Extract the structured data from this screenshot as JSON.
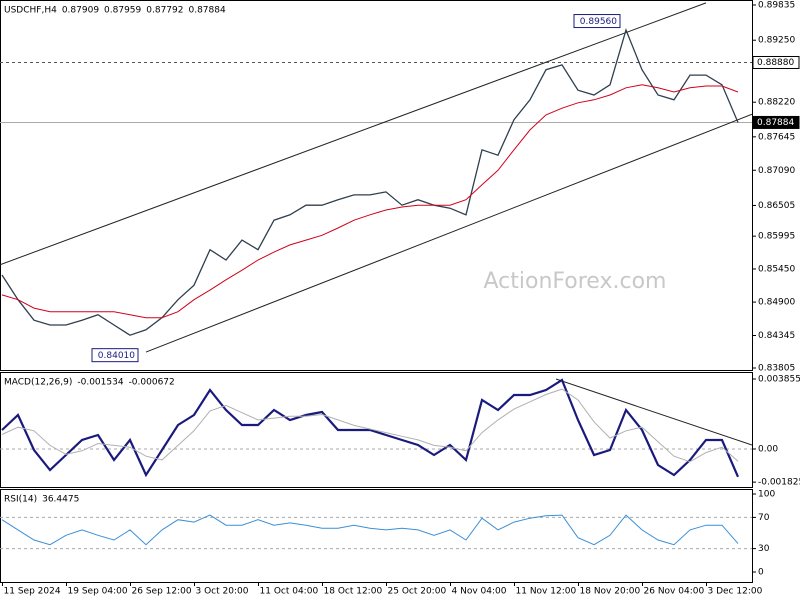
{
  "chart_data": [
    {
      "type": "line",
      "title": "USDCHF,H4",
      "header_values": [
        0.87909,
        0.87959,
        0.87792,
        0.87884
      ],
      "watermark": "ActionForex.com",
      "x": [
        0,
        1,
        2,
        3,
        4,
        5,
        6,
        7,
        8,
        9,
        10,
        11,
        12,
        13,
        14,
        15,
        16,
        17,
        18,
        19,
        20,
        21,
        22,
        23,
        24,
        25,
        26,
        27,
        28,
        29,
        30,
        31,
        32,
        33,
        34,
        35,
        36,
        37,
        38,
        39,
        40,
        41,
        42,
        43,
        44,
        45,
        46
      ],
      "xlim": [
        -0.125,
        46.875
      ],
      "ylim": [
        0.83772,
        0.89918
      ],
      "yticks": [
        0.89835,
        {
          "value": 0.8925,
          "label": "0.89250"
        },
        {
          "value": 0.8822,
          "label": "0.88220"
        },
        0.87645,
        {
          "value": 0.8709,
          "label": "0.87090"
        },
        0.86505,
        0.85995,
        {
          "value": 0.8545,
          "label": "0.85450"
        },
        {
          "value": 0.849,
          "label": "0.84900"
        },
        0.84345,
        0.83805
      ],
      "series": [
        {
          "color": "#2f3f4f",
          "values": [
            0.8535,
            0.8494,
            0.846,
            0.8452,
            0.8452,
            0.846,
            0.8469,
            0.8452,
            0.8435,
            0.8444,
            0.8464,
            0.8494,
            0.8518,
            0.8577,
            0.856,
            0.8593,
            0.8577,
            0.8626,
            0.8635,
            0.8651,
            0.8651,
            0.866,
            0.8668,
            0.8668,
            0.8673,
            0.8651,
            0.866,
            0.8651,
            0.8646,
            0.8635,
            0.8743,
            0.8734,
            0.8793,
            0.8826,
            0.8876,
            0.8884,
            0.8842,
            0.8834,
            0.8851,
            0.8942,
            0.8876,
            0.8834,
            0.8826,
            0.8867,
            0.8867,
            0.8851,
            0.87884
          ]
        },
        {
          "color": "#d0021b",
          "values": [
            0.8502,
            0.8494,
            0.848,
            0.8474,
            0.8474,
            0.8474,
            0.8474,
            0.8474,
            0.8469,
            0.8464,
            0.8464,
            0.8474,
            0.8494,
            0.851,
            0.8527,
            0.8543,
            0.856,
            0.8573,
            0.8585,
            0.8593,
            0.8601,
            0.8613,
            0.8626,
            0.8635,
            0.8643,
            0.8648,
            0.8651,
            0.8651,
            0.8651,
            0.866,
            0.8685,
            0.8709,
            0.8743,
            0.8776,
            0.8801,
            0.8812,
            0.8821,
            0.8826,
            0.8834,
            0.8846,
            0.8851,
            0.8846,
            0.8839,
            0.8846,
            0.8849,
            0.8849,
            0.8839
          ]
        }
      ],
      "hlines": [
        {
          "value": 0.8888,
          "label": "0.88880",
          "style": "dashed"
        },
        {
          "value": 0.87884,
          "label": "0.87884",
          "style": "solid"
        }
      ],
      "annotations": [
        {
          "value": 0.8956,
          "label": "0.89560"
        },
        {
          "value": 0.8401,
          "label": "0.84010"
        }
      ],
      "trendlines": [
        {
          "x": [
            -0.125,
            44
          ],
          "y": [
            0.8552,
            0.8987
          ]
        },
        {
          "x": [
            9,
            46.875
          ],
          "y": [
            0.8407,
            0.8802
          ]
        }
      ]
    },
    {
      "type": "line",
      "title": "MACD(12,26,9)",
      "header_values": [
        -0.001534,
        -0.000672
      ],
      "x": [
        0,
        1,
        2,
        3,
        4,
        5,
        6,
        7,
        8,
        9,
        10,
        11,
        12,
        13,
        14,
        15,
        16,
        17,
        18,
        19,
        20,
        21,
        22,
        23,
        24,
        25,
        26,
        27,
        28,
        29,
        30,
        31,
        32,
        33,
        34,
        35,
        36,
        37,
        38,
        39,
        40,
        41,
        42,
        43,
        44,
        45,
        46
      ],
      "xlim": [
        -0.125,
        46.875
      ],
      "ylim": [
        -0.002094,
        0.004241
      ],
      "yticks": [
        0.003855,
        {
          "value": 0,
          "label": "0.00"
        },
        -0.001825
      ],
      "series": [
        {
          "color": "#1a1a7e",
          "values": [
            0.001047,
            0.001873,
            -5.5e-05,
            -0.001157,
            -0.000331,
            0.000496,
            0.000771,
            -0.000606,
            0.000496,
            -0.001433,
            -5.5e-05,
            0.001322,
            0.001873,
            0.003251,
            0.002149,
            0.001322,
            0.001322,
            0.002149,
            0.001598,
            0.001873,
            0.002039,
            0.001047,
            0.001047,
            0.001047,
            0.000771,
            0.000496,
            0.00022,
            -0.000331,
            0.00022,
            -0.000606,
            0.0027,
            0.002149,
            0.002975,
            0.002975,
            0.003251,
            0.003802,
            0.001598,
            -0.000331,
            -5.5e-05,
            0.002149,
            0.001047,
            -0.000882,
            -0.001433,
            -0.000606,
            0.000496,
            0.000496,
            -0.001534
          ]
        },
        {
          "color": "#b0b0b0",
          "values": [
            0.0008,
            0.0012,
            0.001,
            0.0002,
            -0.0003,
            -0.0001,
            0.0003,
            0.0002,
            0.0001,
            -0.0004,
            -0.0006,
            0.0002,
            0.001,
            0.0021,
            0.0024,
            0.002,
            0.0016,
            0.0017,
            0.0018,
            0.0018,
            0.0019,
            0.0016,
            0.0013,
            0.0011,
            0.0009,
            0.0007,
            0.0005,
            0.0002,
            0.0001,
            -0.0001,
            0.0009,
            0.0016,
            0.0022,
            0.0026,
            0.003,
            0.0033,
            0.0027,
            0.0015,
            0.0006,
            0.001,
            0.0012,
            0.0004,
            -0.0004,
            -0.0007,
            -0.0002,
            0.0001,
            -0.000672
          ]
        }
      ],
      "levels": [
        0
      ],
      "trendlines": [
        {
          "x": [
            34.625,
            46.875
          ],
          "y": [
            0.003855,
            0.00022
          ]
        }
      ]
    },
    {
      "type": "line",
      "title": "RSI(14)",
      "header_values": [
        36.4475
      ],
      "x": [
        0,
        1,
        2,
        3,
        4,
        5,
        6,
        7,
        8,
        9,
        10,
        11,
        12,
        13,
        14,
        15,
        16,
        17,
        18,
        19,
        20,
        21,
        22,
        23,
        24,
        25,
        26,
        27,
        28,
        29,
        30,
        31,
        32,
        33,
        34,
        35,
        36,
        37,
        38,
        39,
        40,
        41,
        42,
        43,
        44,
        45,
        46
      ],
      "xlim": [
        -0.125,
        46.875
      ],
      "ylim": [
        -12.8,
        106.4
      ],
      "yticks": [
        100,
        70,
        30,
        0
      ],
      "series": [
        {
          "color": "#3b8fd6",
          "values": [
            67,
            54,
            41,
            35,
            47,
            54,
            47,
            41,
            54,
            35,
            54,
            67,
            64,
            73,
            60,
            60,
            67,
            60,
            63,
            60,
            56,
            56,
            60,
            56,
            54,
            56,
            54,
            47,
            54,
            41,
            69,
            54,
            64,
            69,
            72,
            73,
            44,
            35,
            47,
            73,
            54,
            41,
            35,
            54,
            60,
            60,
            36.4475
          ]
        }
      ],
      "levels": [
        70,
        30
      ],
      "xticks": [
        {
          "value": 0,
          "label": "11 Sep 2024"
        },
        {
          "value": 4,
          "label": "19 Sep 04:00"
        },
        {
          "value": 8,
          "label": "26 Sep 12:00"
        },
        {
          "value": 12,
          "label": "3 Oct 20:00"
        },
        {
          "value": 16,
          "label": "11 Oct 04:00"
        },
        {
          "value": 20,
          "label": "18 Oct 12:00"
        },
        {
          "value": 24,
          "label": "25 Oct 20:00"
        },
        {
          "value": 28,
          "label": "4 Nov 04:00"
        },
        {
          "value": 32,
          "label": "11 Nov 12:00"
        },
        {
          "value": 36,
          "label": "18 Nov 20:00"
        },
        {
          "value": 40,
          "label": "26 Nov 04:00"
        },
        {
          "value": 44,
          "label": "3 Dec 12:00"
        }
      ]
    }
  ]
}
